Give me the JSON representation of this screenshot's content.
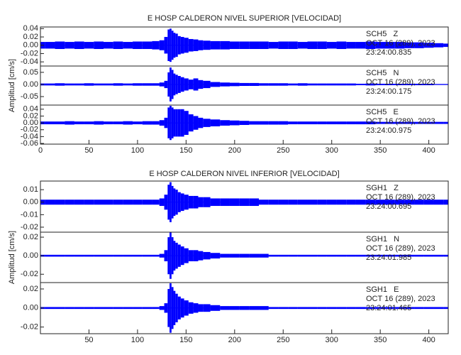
{
  "chart_data": [
    {
      "type": "line",
      "title": "E HOSP CALDERON NIVEL SUPERIOR [VELOCIDAD]",
      "ylabel": "Amplitud [cm/s]",
      "color": "#0000ff",
      "xlim": [
        0,
        420
      ],
      "xticks": [
        0,
        50,
        100,
        150,
        200,
        250,
        300,
        350,
        400
      ],
      "x": [
        0,
        10,
        20,
        30,
        40,
        50,
        60,
        70,
        80,
        90,
        100,
        110,
        120,
        125,
        130,
        132,
        134,
        136,
        138,
        140,
        143,
        146,
        150,
        155,
        160,
        165,
        170,
        180,
        190,
        200,
        210,
        220,
        230,
        240,
        250,
        260,
        270,
        280,
        290,
        300,
        310,
        320,
        330,
        340,
        350,
        360,
        370,
        380,
        390,
        400,
        410,
        420
      ],
      "panels": [
        {
          "station": "SCH5   Z",
          "date": "OCT 16 (289), 2023",
          "time": "23:24:00.835",
          "ylim": [
            -0.05,
            0.044
          ],
          "yticks": [
            {
              "value": 0.04,
              "label": "0.04"
            },
            {
              "value": 0.02,
              "label": "0.02"
            },
            {
              "value": 0,
              "label": "0.00"
            },
            {
              "value": -0.02,
              "label": "-0.02"
            },
            {
              "value": -0.04,
              "label": "-0.04"
            }
          ],
          "values": [
            0.008,
            0.008,
            0.009,
            0.008,
            0.009,
            0.008,
            0.009,
            0.008,
            0.009,
            0.008,
            0.009,
            0.009,
            0.01,
            0.012,
            0.02,
            0.038,
            0.04,
            0.035,
            0.03,
            0.028,
            0.022,
            0.02,
            0.018,
            0.015,
            0.014,
            0.012,
            0.011,
            0.01,
            0.01,
            0.009,
            0.009,
            0.009,
            0.009,
            0.008,
            0.009,
            0.009,
            0.008,
            0.009,
            0.009,
            0.008,
            0.009,
            0.008,
            0.008,
            0.009,
            0.008,
            0.008,
            0.008,
            0.007,
            0.007,
            0.006,
            0.005,
            0.004
          ]
        },
        {
          "station": "SCH5   N",
          "date": "OCT 16 (289), 2023",
          "time": "23:24:00.175",
          "ylim": [
            -0.085,
            0.076
          ],
          "yticks": [
            {
              "value": 0.05,
              "label": "0.05"
            },
            {
              "value": 0,
              "label": "0.00"
            },
            {
              "value": -0.05,
              "label": "-0.05"
            }
          ],
          "values": [
            0.004,
            0.004,
            0.005,
            0.004,
            0.004,
            0.005,
            0.004,
            0.004,
            0.005,
            0.004,
            0.005,
            0.005,
            0.005,
            0.008,
            0.015,
            0.05,
            0.07,
            0.06,
            0.045,
            0.04,
            0.035,
            0.03,
            0.025,
            0.02,
            0.025,
            0.018,
            0.015,
            0.01,
            0.008,
            0.007,
            0.006,
            0.006,
            0.005,
            0.005,
            0.005,
            0.004,
            0.005,
            0.004,
            0.004,
            0.004,
            0.004,
            0.004,
            0.003,
            0.004,
            0.003,
            0.003,
            0.003,
            0.003,
            0.003,
            0.003,
            0.002,
            0.002
          ]
        },
        {
          "station": "SCH5   E",
          "date": "OCT 16 (289), 2023",
          "time": "23:24:00.975",
          "ylim": [
            -0.062,
            0.052
          ],
          "yticks": [
            {
              "value": 0.04,
              "label": "0.04"
            },
            {
              "value": 0.02,
              "label": "0.02"
            },
            {
              "value": 0,
              "label": "0.00"
            },
            {
              "value": -0.02,
              "label": "-0.02"
            },
            {
              "value": -0.04,
              "label": "-0.04"
            },
            {
              "value": -0.06,
              "label": "-0.06"
            }
          ],
          "values": [
            0.004,
            0.004,
            0.004,
            0.005,
            0.004,
            0.004,
            0.005,
            0.004,
            0.004,
            0.005,
            0.004,
            0.005,
            0.005,
            0.008,
            0.015,
            0.045,
            0.05,
            0.045,
            0.04,
            0.04,
            0.04,
            0.04,
            0.035,
            0.025,
            0.02,
            0.015,
            0.012,
            0.01,
            0.008,
            0.007,
            0.006,
            0.005,
            0.005,
            0.005,
            0.005,
            0.004,
            0.004,
            0.004,
            0.004,
            0.004,
            0.004,
            0.004,
            0.004,
            0.004,
            0.003,
            0.003,
            0.003,
            0.003,
            0.003,
            0.003,
            0.003,
            0.003
          ]
        }
      ]
    },
    {
      "type": "line",
      "title": "E HOSP CALDERON NIVEL INFERIOR [VELOCIDAD]",
      "ylabel": "Amplitud [cm/s]",
      "color": "#0000ff",
      "xlim": [
        0,
        420
      ],
      "xticks": [
        50,
        100,
        150,
        200,
        250,
        300,
        350,
        400
      ],
      "x": [
        0,
        10,
        20,
        30,
        40,
        50,
        60,
        70,
        80,
        90,
        100,
        110,
        120,
        125,
        130,
        132,
        134,
        136,
        138,
        140,
        143,
        146,
        150,
        155,
        160,
        165,
        170,
        180,
        190,
        200,
        210,
        220,
        230,
        240,
        250,
        260,
        270,
        280,
        290,
        300,
        310,
        320,
        330,
        340,
        350,
        360,
        370,
        380,
        390,
        400,
        410,
        420
      ],
      "panels": [
        {
          "station": "SGH1   Z",
          "date": "OCT 16 (289), 2023",
          "time": "23:24:00.695",
          "ylim": [
            -0.024,
            0.0169
          ],
          "yticks": [
            {
              "value": 0.01,
              "label": "0.01"
            },
            {
              "value": 0,
              "label": "0.00"
            },
            {
              "value": -0.01,
              "label": "-0.01"
            },
            {
              "value": -0.02,
              "label": "-0.02"
            }
          ],
          "values": [
            0.002,
            0.002,
            0.002,
            0.002,
            0.002,
            0.002,
            0.002,
            0.002,
            0.002,
            0.002,
            0.002,
            0.002,
            0.002,
            0.003,
            0.006,
            0.014,
            0.016,
            0.013,
            0.011,
            0.01,
            0.008,
            0.007,
            0.006,
            0.005,
            0.005,
            0.004,
            0.004,
            0.003,
            0.003,
            0.003,
            0.003,
            0.003,
            0.002,
            0.002,
            0.002,
            0.002,
            0.002,
            0.002,
            0.002,
            0.002,
            0.002,
            0.002,
            0.002,
            0.002,
            0.002,
            0.002,
            0.002,
            0.002,
            0.002,
            0.002,
            0.002,
            0.002
          ]
        },
        {
          "station": "SGH1   N",
          "date": "OCT 16 (289), 2023",
          "time": "23:24:01.985",
          "ylim": [
            -0.029,
            0.0254
          ],
          "yticks": [
            {
              "value": 0.02,
              "label": "0.02"
            },
            {
              "value": 0,
              "label": "0.00"
            },
            {
              "value": -0.02,
              "label": "-0.02"
            }
          ],
          "values": [
            0.001,
            0.001,
            0.001,
            0.001,
            0.001,
            0.001,
            0.001,
            0.001,
            0.001,
            0.001,
            0.001,
            0.001,
            0.001,
            0.002,
            0.006,
            0.02,
            0.025,
            0.02,
            0.016,
            0.014,
            0.012,
            0.01,
            0.008,
            0.006,
            0.006,
            0.005,
            0.004,
            0.003,
            0.002,
            0.002,
            0.002,
            0.002,
            0.002,
            0.001,
            0.001,
            0.001,
            0.001,
            0.001,
            0.001,
            0.001,
            0.001,
            0.001,
            0.001,
            0.001,
            0.001,
            0.001,
            0.001,
            0.001,
            0.001,
            0.001,
            0.001,
            0.001
          ]
        },
        {
          "station": "SGH1   E",
          "date": "OCT 16 (289), 2023",
          "time": "23:24:01.465",
          "ylim": [
            -0.027,
            0.0267
          ],
          "yticks": [
            {
              "value": 0.02,
              "label": "0.02"
            },
            {
              "value": 0,
              "label": "0.00"
            },
            {
              "value": -0.02,
              "label": "-0.02"
            }
          ],
          "values": [
            0.001,
            0.001,
            0.001,
            0.001,
            0.001,
            0.001,
            0.001,
            0.001,
            0.001,
            0.001,
            0.001,
            0.001,
            0.001,
            0.002,
            0.005,
            0.02,
            0.026,
            0.022,
            0.018,
            0.015,
            0.012,
            0.01,
            0.008,
            0.006,
            0.005,
            0.004,
            0.004,
            0.003,
            0.002,
            0.002,
            0.002,
            0.002,
            0.002,
            0.001,
            0.001,
            0.001,
            0.001,
            0.001,
            0.001,
            0.001,
            0.001,
            0.001,
            0.001,
            0.001,
            0.001,
            0.001,
            0.001,
            0.001,
            0.001,
            0.001,
            0.001,
            0.001
          ]
        }
      ]
    }
  ]
}
